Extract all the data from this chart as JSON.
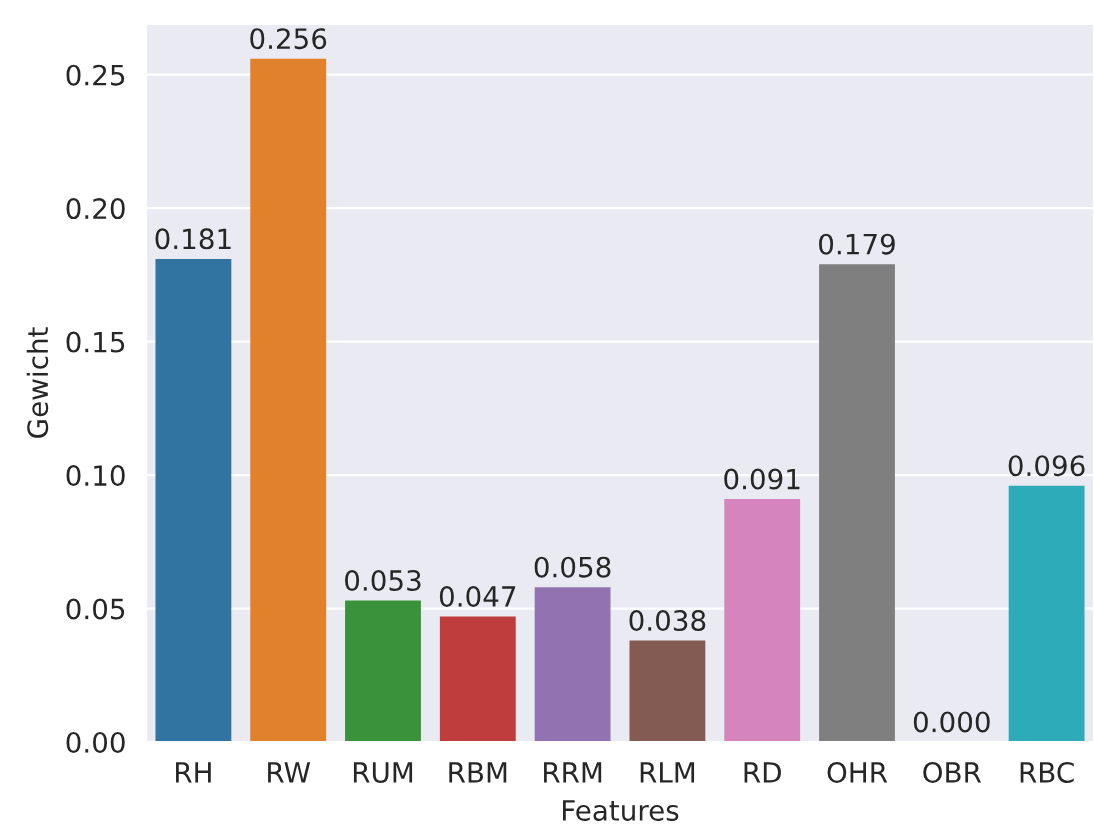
{
  "chart_data": {
    "type": "bar",
    "xlabel": "Features",
    "ylabel": "Gewicht",
    "categories": [
      "RH",
      "RW",
      "RUM",
      "RBM",
      "RRM",
      "RLM",
      "RD",
      "OHR",
      "OBR",
      "RBC"
    ],
    "values": [
      0.181,
      0.256,
      0.053,
      0.047,
      0.058,
      0.038,
      0.091,
      0.179,
      0.0,
      0.096
    ],
    "colors": [
      "#3274a1",
      "#e1812c",
      "#3a923a",
      "#c03d3e",
      "#9372b2",
      "#845b53",
      "#d684bd",
      "#7f7f7f",
      "#a9aa35",
      "#2eabb8"
    ],
    "ylim": [
      0,
      0.269
    ],
    "yticks": [
      {
        "value": 0,
        "label": "0.00"
      },
      {
        "value": 0.05,
        "label": "0.05"
      },
      {
        "value": 0.1,
        "label": "0.10"
      },
      {
        "value": 0.15,
        "label": "0.15"
      },
      {
        "value": 0.2,
        "label": "0.20"
      },
      {
        "value": 0.25,
        "label": "0.25"
      }
    ],
    "value_labels": [
      "0.181",
      "0.256",
      "0.053",
      "0.047",
      "0.058",
      "0.038",
      "0.091",
      "0.179",
      "0.000",
      "0.096"
    ],
    "grid": "y",
    "legend": false
  }
}
